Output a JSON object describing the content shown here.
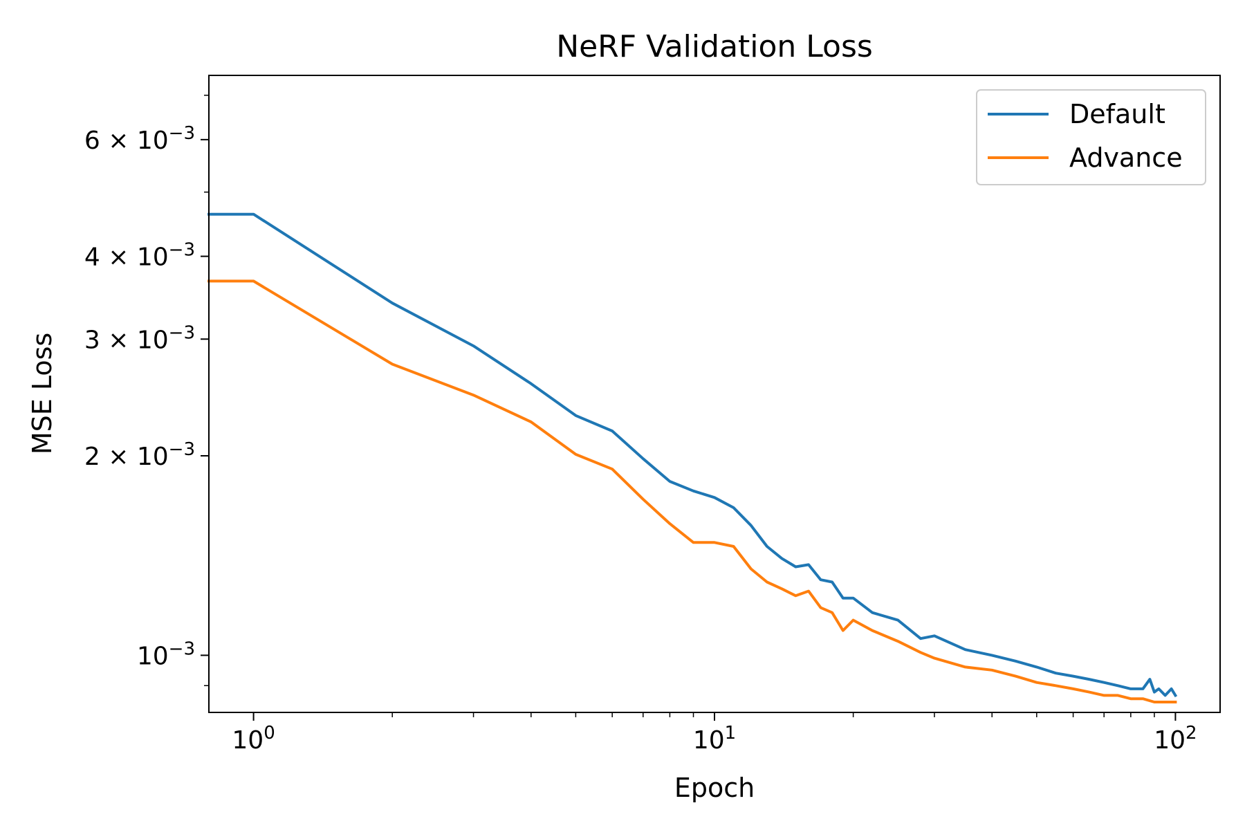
{
  "chart_data": {
    "type": "line",
    "title": "NeRF Validation Loss",
    "xlabel": "Epoch",
    "ylabel": "MSE Loss",
    "xscale": "log",
    "yscale": "log",
    "xlim": [
      0.8,
      125
    ],
    "ylim": [
      0.00082,
      0.0075
    ],
    "grid": false,
    "legend_position": "top-right",
    "x_ticks": [
      {
        "value": 1,
        "mantissa": "10",
        "exp": "0"
      },
      {
        "value": 10,
        "mantissa": "10",
        "exp": "1"
      },
      {
        "value": 100,
        "mantissa": "10",
        "exp": "2"
      }
    ],
    "y_ticks": [
      {
        "value": 0.001,
        "mantissa": "10",
        "exp": "−3"
      },
      {
        "value": 0.002,
        "mantissa": "2 × 10",
        "exp": "−3"
      },
      {
        "value": 0.003,
        "mantissa": "3 × 10",
        "exp": "−3"
      },
      {
        "value": 0.004,
        "mantissa": "4 × 10",
        "exp": "−3"
      },
      {
        "value": 0.006,
        "mantissa": "6 × 10",
        "exp": "−3"
      }
    ],
    "series": [
      {
        "name": "Default",
        "color": "#1f77b4",
        "x": [
          0.8,
          1,
          2,
          3,
          4,
          5,
          6,
          7,
          8,
          9,
          10,
          11,
          12,
          13,
          14,
          15,
          16,
          17,
          18,
          19,
          20,
          22,
          25,
          28,
          30,
          35,
          40,
          45,
          50,
          55,
          60,
          65,
          70,
          75,
          80,
          85,
          88,
          90,
          92,
          95,
          98,
          100
        ],
        "y": [
          0.00463,
          0.00463,
          0.0034,
          0.00293,
          0.00257,
          0.0023,
          0.00218,
          0.00198,
          0.00183,
          0.00177,
          0.00173,
          0.00167,
          0.00157,
          0.00146,
          0.0014,
          0.00136,
          0.00137,
          0.0013,
          0.00129,
          0.00122,
          0.00122,
          0.00116,
          0.00113,
          0.00106,
          0.00107,
          0.00102,
          0.001,
          0.00098,
          0.00096,
          0.00094,
          0.00093,
          0.00092,
          0.00091,
          0.0009,
          0.00089,
          0.00089,
          0.00092,
          0.00088,
          0.00089,
          0.00087,
          0.00089,
          0.00087
        ]
      },
      {
        "name": "Advance",
        "color": "#ff7f0e",
        "x": [
          0.8,
          1,
          2,
          3,
          4,
          5,
          6,
          7,
          8,
          9,
          10,
          11,
          12,
          13,
          14,
          15,
          16,
          17,
          18,
          19,
          20,
          22,
          25,
          28,
          30,
          35,
          40,
          45,
          50,
          55,
          60,
          65,
          70,
          75,
          80,
          85,
          90,
          95,
          100
        ],
        "y": [
          0.00367,
          0.00367,
          0.00275,
          0.00247,
          0.00225,
          0.00201,
          0.00191,
          0.00172,
          0.00158,
          0.00148,
          0.00148,
          0.00146,
          0.00135,
          0.00129,
          0.00126,
          0.00123,
          0.00125,
          0.00118,
          0.00116,
          0.00109,
          0.00113,
          0.00109,
          0.00105,
          0.00101,
          0.00099,
          0.00096,
          0.00095,
          0.00093,
          0.00091,
          0.0009,
          0.00089,
          0.00088,
          0.00087,
          0.00087,
          0.00086,
          0.00086,
          0.00085,
          0.00085,
          0.00085
        ]
      }
    ]
  }
}
